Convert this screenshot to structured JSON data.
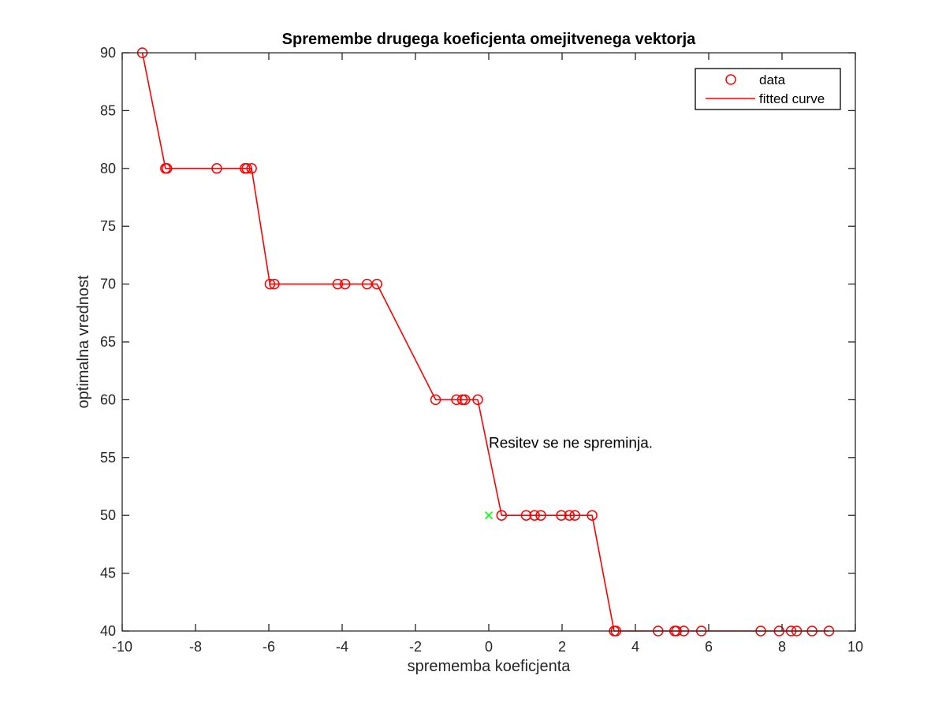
{
  "chart_data": {
    "type": "scatter",
    "title": "Spremembe drugega koeficjenta omejitvenega vektorja",
    "xlabel": "sprememba koeficjenta",
    "ylabel": "optimalna vrednost",
    "xlim": [
      -10,
      10
    ],
    "ylim": [
      40,
      90
    ],
    "x_ticks": [
      -10,
      -8,
      -6,
      -4,
      -2,
      0,
      2,
      4,
      6,
      8,
      10
    ],
    "y_ticks": [
      40,
      45,
      50,
      55,
      60,
      65,
      70,
      75,
      80,
      85,
      90
    ],
    "x_tick_labels": [
      "-10",
      "-8",
      "-6",
      "-4",
      "-2",
      "0",
      "2",
      "4",
      "6",
      "8",
      "10"
    ],
    "y_tick_labels": [
      "40",
      "45",
      "50",
      "55",
      "60",
      "65",
      "70",
      "75",
      "80",
      "85",
      "90"
    ],
    "grid": false,
    "legend_position": "top-right",
    "series": [
      {
        "name": "data",
        "marker": "circle",
        "color": "#ff0000",
        "x": [
          -9.45,
          -8.82,
          -8.78,
          -7.42,
          -6.65,
          -6.6,
          -6.47,
          -5.97,
          -5.85,
          -4.12,
          -3.92,
          -3.32,
          -3.05,
          -1.45,
          -0.88,
          -0.72,
          -0.65,
          -0.3,
          0.35,
          1.02,
          1.25,
          1.42,
          1.98,
          2.2,
          2.35,
          2.82,
          3.42,
          3.47,
          4.62,
          5.07,
          5.12,
          5.32,
          5.8,
          7.42,
          7.92,
          8.25,
          8.4,
          8.82,
          9.28
        ],
        "y": [
          90,
          80,
          80,
          80,
          80,
          80,
          80,
          70,
          70,
          70,
          70,
          70,
          70,
          60,
          60,
          60,
          60,
          60,
          50,
          50,
          50,
          50,
          50,
          50,
          50,
          50,
          40,
          40,
          40,
          40,
          40,
          40,
          40,
          40,
          40,
          40,
          40,
          40,
          40
        ]
      },
      {
        "name": "fitted curve",
        "line": "solid",
        "color": "#ff0000",
        "x": [
          -9.45,
          -8.82,
          -8.78,
          -7.42,
          -6.65,
          -6.6,
          -6.47,
          -5.97,
          -5.85,
          -4.12,
          -3.92,
          -3.32,
          -3.05,
          -1.45,
          -0.88,
          -0.72,
          -0.65,
          -0.3,
          0.35,
          1.02,
          1.25,
          1.42,
          1.98,
          2.2,
          2.35,
          2.82,
          3.42,
          3.47,
          4.62,
          5.07,
          5.12,
          5.32,
          5.8,
          7.42,
          7.92,
          8.25,
          8.4,
          8.82,
          9.28
        ],
        "y": [
          90,
          80,
          80,
          80,
          80,
          80,
          80,
          70,
          70,
          70,
          70,
          70,
          70,
          60,
          60,
          60,
          60,
          60,
          50,
          50,
          50,
          50,
          50,
          50,
          50,
          50,
          40,
          40,
          40,
          40,
          40,
          40,
          40,
          40,
          40,
          40,
          40,
          40,
          40
        ]
      }
    ],
    "highlight_point": {
      "x": 0,
      "y": 50,
      "marker": "x",
      "color": "#00ff00"
    },
    "annotations": [
      {
        "text": "Resitev se ne spreminja.",
        "x": 0,
        "y": 56.3
      }
    ],
    "legend": [
      {
        "label": "data",
        "kind": "marker"
      },
      {
        "label": "fitted curve",
        "kind": "line"
      }
    ]
  }
}
